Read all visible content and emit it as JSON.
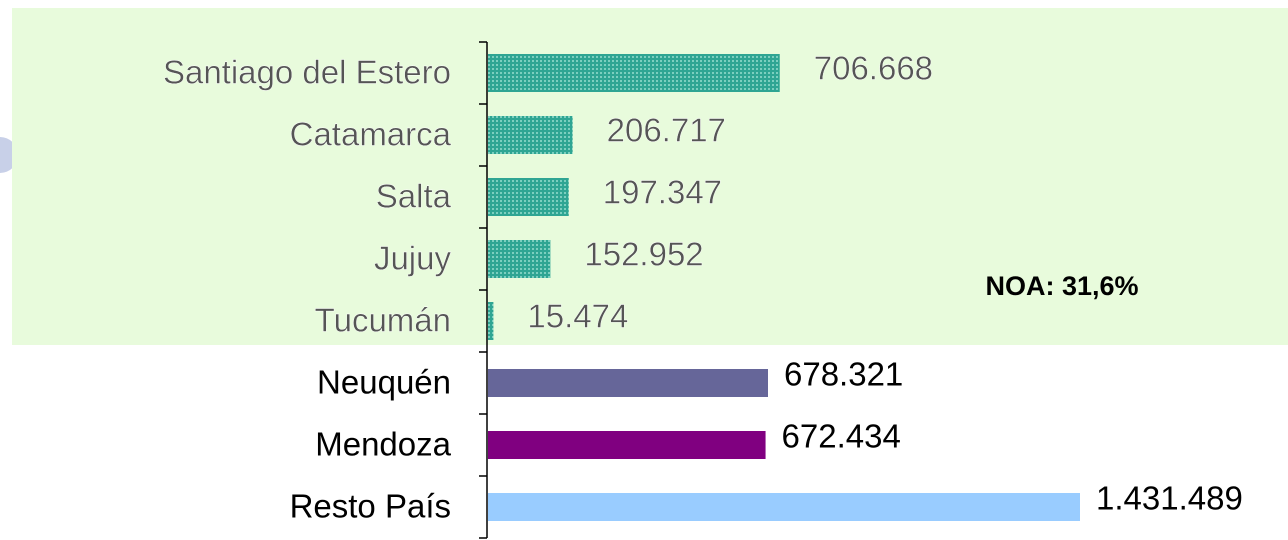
{
  "chart_data": {
    "type": "hbar",
    "categories": [
      "Santiago del Estero",
      "Catamarca",
      "Salta",
      "Jujuy",
      "Tucumán",
      "Neuquén",
      "Mendoza",
      "Resto País"
    ],
    "values": [
      706668,
      206717,
      197347,
      152952,
      15474,
      678321,
      672434,
      1431489
    ],
    "value_labels": [
      "706.668",
      "206.717",
      "197.347",
      "152.952",
      "15.474",
      "678.321",
      "672.434",
      "1.431.489"
    ],
    "colors": [
      "#2fa593",
      "#2fa593",
      "#2fa593",
      "#2fa593",
      "#2fa593",
      "#666699",
      "#800080",
      "#99ccff"
    ],
    "hatched": [
      true,
      true,
      true,
      true,
      true,
      false,
      false,
      false
    ],
    "annotation": "NOA: 31,6%"
  }
}
